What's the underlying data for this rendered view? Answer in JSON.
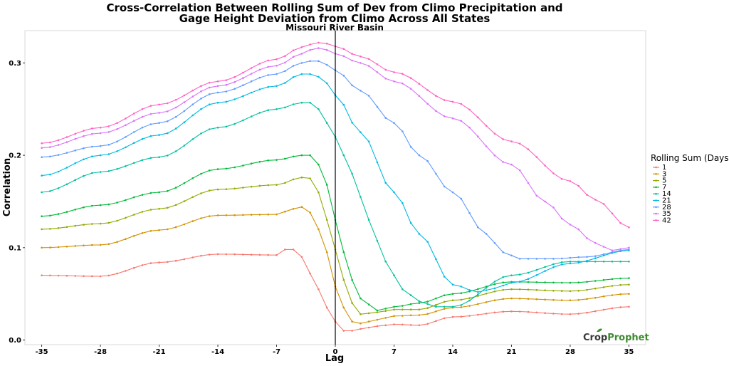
{
  "chart_data": {
    "type": "line",
    "title": [
      "Cross-Correlation Between Rolling Sum of Dev from Climo Precipitation and",
      "Gage Height Deviation from Climo Across All States"
    ],
    "subtitle": "Missouri River Basin",
    "xlabel": "Lag",
    "ylabel": "Correlation",
    "xlim": [
      -37,
      37
    ],
    "ylim": [
      -0.005,
      0.335
    ],
    "xticks": [
      "-35",
      "-28",
      "-21",
      "-14",
      "-7",
      "0",
      "7",
      "14",
      "21",
      "28",
      "35"
    ],
    "yticks": [
      "0.0",
      "0.1",
      "0.2",
      "0.3"
    ],
    "vline_at": 0,
    "legend_title": "Rolling Sum (Days)",
    "logo": {
      "part1": "Crop",
      "part2": "Prophet"
    },
    "series": [
      {
        "name": "1",
        "color": "#F8766D",
        "points": [
          [
            -35,
            0.07
          ],
          [
            -28,
            0.069
          ],
          [
            -21,
            0.084
          ],
          [
            -14,
            0.093
          ],
          [
            -7,
            0.092
          ],
          [
            -6,
            0.098
          ],
          [
            -5,
            0.098
          ],
          [
            -4,
            0.09
          ],
          [
            -3,
            0.072
          ],
          [
            -2,
            0.055
          ],
          [
            -1,
            0.035
          ],
          [
            0,
            0.02
          ],
          [
            1,
            0.01
          ],
          [
            2,
            0.01
          ],
          [
            3,
            0.012
          ],
          [
            5,
            0.015
          ],
          [
            7,
            0.017
          ],
          [
            10,
            0.016
          ],
          [
            14,
            0.025
          ],
          [
            21,
            0.031
          ],
          [
            28,
            0.028
          ],
          [
            35,
            0.036
          ]
        ]
      },
      {
        "name": "3",
        "color": "#D39200",
        "points": [
          [
            -35,
            0.1
          ],
          [
            -28,
            0.103
          ],
          [
            -21,
            0.119
          ],
          [
            -14,
            0.135
          ],
          [
            -7,
            0.136
          ],
          [
            -5,
            0.142
          ],
          [
            -4,
            0.144
          ],
          [
            -3,
            0.138
          ],
          [
            -2,
            0.12
          ],
          [
            -1,
            0.095
          ],
          [
            0,
            0.058
          ],
          [
            1,
            0.035
          ],
          [
            2,
            0.02
          ],
          [
            3,
            0.018
          ],
          [
            5,
            0.022
          ],
          [
            7,
            0.026
          ],
          [
            10,
            0.027
          ],
          [
            14,
            0.035
          ],
          [
            21,
            0.045
          ],
          [
            28,
            0.043
          ],
          [
            35,
            0.05
          ]
        ]
      },
      {
        "name": "5",
        "color": "#93AA00",
        "points": [
          [
            -35,
            0.12
          ],
          [
            -28,
            0.126
          ],
          [
            -21,
            0.142
          ],
          [
            -14,
            0.163
          ],
          [
            -7,
            0.168
          ],
          [
            -4,
            0.176
          ],
          [
            -3,
            0.175
          ],
          [
            -2,
            0.16
          ],
          [
            -1,
            0.13
          ],
          [
            0,
            0.098
          ],
          [
            1,
            0.065
          ],
          [
            2,
            0.04
          ],
          [
            3,
            0.028
          ],
          [
            5,
            0.03
          ],
          [
            7,
            0.033
          ],
          [
            10,
            0.033
          ],
          [
            14,
            0.043
          ],
          [
            21,
            0.055
          ],
          [
            28,
            0.053
          ],
          [
            35,
            0.06
          ]
        ]
      },
      {
        "name": "7",
        "color": "#00BA38",
        "points": [
          [
            -35,
            0.134
          ],
          [
            -28,
            0.146
          ],
          [
            -21,
            0.16
          ],
          [
            -14,
            0.185
          ],
          [
            -7,
            0.195
          ],
          [
            -4,
            0.2
          ],
          [
            -3,
            0.2
          ],
          [
            -2,
            0.19
          ],
          [
            -1,
            0.168
          ],
          [
            0,
            0.13
          ],
          [
            1,
            0.095
          ],
          [
            2,
            0.065
          ],
          [
            3,
            0.045
          ],
          [
            5,
            0.032
          ],
          [
            7,
            0.036
          ],
          [
            10,
            0.04
          ],
          [
            14,
            0.05
          ],
          [
            21,
            0.063
          ],
          [
            28,
            0.062
          ],
          [
            35,
            0.067
          ]
        ]
      },
      {
        "name": "14",
        "color": "#00C19F",
        "points": [
          [
            -35,
            0.16
          ],
          [
            -28,
            0.182
          ],
          [
            -21,
            0.198
          ],
          [
            -14,
            0.23
          ],
          [
            -7,
            0.25
          ],
          [
            -4,
            0.257
          ],
          [
            -3,
            0.257
          ],
          [
            -2,
            0.25
          ],
          [
            -1,
            0.235
          ],
          [
            0,
            0.22
          ],
          [
            2,
            0.18
          ],
          [
            4,
            0.13
          ],
          [
            6,
            0.085
          ],
          [
            8,
            0.055
          ],
          [
            10,
            0.042
          ],
          [
            12,
            0.036
          ],
          [
            14,
            0.036
          ],
          [
            21,
            0.07
          ],
          [
            28,
            0.085
          ],
          [
            35,
            0.085
          ]
        ]
      },
      {
        "name": "21",
        "color": "#00B9E3",
        "points": [
          [
            -35,
            0.178
          ],
          [
            -28,
            0.2
          ],
          [
            -21,
            0.222
          ],
          [
            -14,
            0.257
          ],
          [
            -7,
            0.275
          ],
          [
            -4,
            0.288
          ],
          [
            -3,
            0.288
          ],
          [
            -2,
            0.285
          ],
          [
            -1,
            0.278
          ],
          [
            0,
            0.265
          ],
          [
            3,
            0.225
          ],
          [
            7,
            0.16
          ],
          [
            10,
            0.115
          ],
          [
            14,
            0.06
          ],
          [
            17,
            0.052
          ],
          [
            19,
            0.056
          ],
          [
            21,
            0.062
          ],
          [
            28,
            0.083
          ],
          [
            35,
            0.097
          ]
        ]
      },
      {
        "name": "28",
        "color": "#619CFF",
        "points": [
          [
            -35,
            0.198
          ],
          [
            -28,
            0.21
          ],
          [
            -21,
            0.235
          ],
          [
            -14,
            0.268
          ],
          [
            -7,
            0.288
          ],
          [
            -4,
            0.3
          ],
          [
            -3,
            0.302
          ],
          [
            -2,
            0.302
          ],
          [
            -1,
            0.298
          ],
          [
            0,
            0.292
          ],
          [
            3,
            0.27
          ],
          [
            7,
            0.235
          ],
          [
            10,
            0.2
          ],
          [
            14,
            0.16
          ],
          [
            18,
            0.115
          ],
          [
            20,
            0.095
          ],
          [
            22,
            0.088
          ],
          [
            26,
            0.088
          ],
          [
            30,
            0.09
          ],
          [
            35,
            0.098
          ]
        ]
      },
      {
        "name": "35",
        "color": "#DB72FB",
        "points": [
          [
            -35,
            0.208
          ],
          [
            -28,
            0.224
          ],
          [
            -21,
            0.246
          ],
          [
            -14,
            0.275
          ],
          [
            -7,
            0.297
          ],
          [
            -4,
            0.31
          ],
          [
            -3,
            0.314
          ],
          [
            -2,
            0.316
          ],
          [
            -1,
            0.314
          ],
          [
            0,
            0.31
          ],
          [
            3,
            0.3
          ],
          [
            7,
            0.28
          ],
          [
            14,
            0.24
          ],
          [
            21,
            0.19
          ],
          [
            25,
            0.15
          ],
          [
            28,
            0.125
          ],
          [
            31,
            0.105
          ],
          [
            33,
            0.097
          ],
          [
            35,
            0.1
          ]
        ]
      },
      {
        "name": "42",
        "color": "#FF61C3",
        "points": [
          [
            -35,
            0.213
          ],
          [
            -28,
            0.23
          ],
          [
            -21,
            0.255
          ],
          [
            -14,
            0.28
          ],
          [
            -7,
            0.304
          ],
          [
            -4,
            0.317
          ],
          [
            -3,
            0.32
          ],
          [
            -2,
            0.322
          ],
          [
            -1,
            0.321
          ],
          [
            0,
            0.318
          ],
          [
            3,
            0.307
          ],
          [
            7,
            0.29
          ],
          [
            14,
            0.258
          ],
          [
            21,
            0.215
          ],
          [
            28,
            0.172
          ],
          [
            31,
            0.152
          ],
          [
            35,
            0.122
          ]
        ]
      }
    ]
  }
}
